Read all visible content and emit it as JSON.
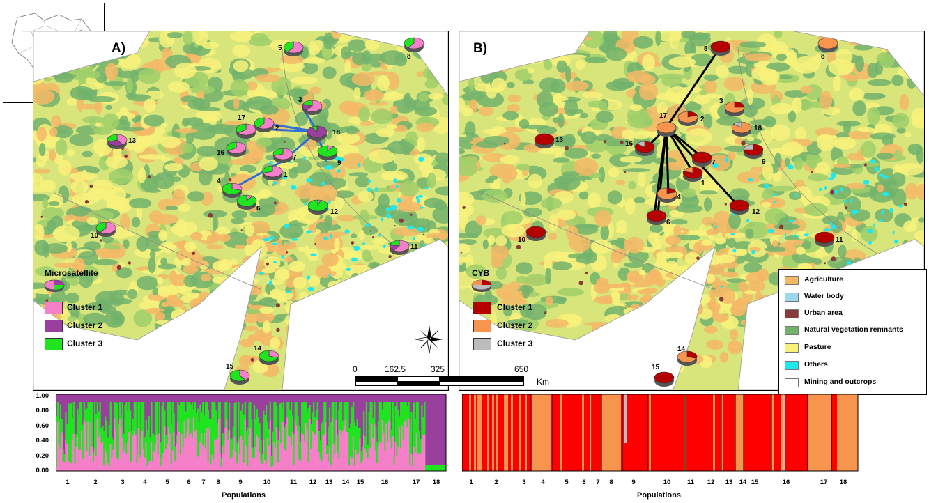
{
  "inset_map": {
    "label": ""
  },
  "panels": {
    "a": {
      "label": "A)",
      "legend_title": "Microsatellite"
    },
    "b": {
      "label": "B)",
      "legend_title": "CYB"
    }
  },
  "clusters_a": [
    {
      "label": "Cluster 1",
      "color": "#f57fc8"
    },
    {
      "label": "Cluster 2",
      "color": "#9a3f9e"
    },
    {
      "label": "Cluster 3",
      "color": "#1fe41f"
    }
  ],
  "clusters_b": [
    {
      "label": "Cluster 1",
      "color": "#b60000"
    },
    {
      "label": "Cluster 2",
      "color": "#f7944d"
    },
    {
      "label": "Cluster 3",
      "color": "#bcbcbc"
    }
  ],
  "land_use_legend": [
    {
      "label": "Agriculture",
      "color": "#f4b867"
    },
    {
      "label": "Water body",
      "color": "#9dd8ee"
    },
    {
      "label": "Urban area",
      "color": "#8b3a3a"
    },
    {
      "label": "Natural vegetation remnants",
      "color": "#72b36c"
    },
    {
      "label": "Pasture",
      "color": "#f8f27b"
    },
    {
      "label": "Others",
      "color": "#1ee8f0"
    },
    {
      "label": "Mining and outcrops",
      "color": "#ffffff"
    }
  ],
  "scale_bar": {
    "labels": [
      "0",
      "162.5",
      "325",
      "650"
    ],
    "unit": "Km"
  },
  "populations_a": [
    "5",
    "8",
    "3",
    "17",
    "2",
    "18",
    "13",
    "16",
    "7",
    "9",
    "1",
    "4",
    "6",
    "12",
    "10",
    "11",
    "14",
    "15"
  ],
  "populations_b": [
    "5",
    "8",
    "3",
    "17",
    "2",
    "18",
    "13",
    "16",
    "7",
    "9",
    "1",
    "4",
    "6",
    "12",
    "10",
    "11",
    "14",
    "15"
  ],
  "bar_plot_a": {
    "y_ticks": [
      "1.00",
      "0.80",
      "0.60",
      "0.40",
      "0.20",
      "0.00"
    ],
    "x_ticks": [
      "1",
      "2",
      "3",
      "4",
      "5",
      "6",
      "7",
      "8",
      "9",
      "10",
      "11",
      "12",
      "13",
      "14",
      "15",
      "16",
      "17",
      "18"
    ],
    "x_label": "Populations"
  },
  "bar_plot_b": {
    "x_ticks": [
      "1",
      "2",
      "3",
      "4",
      "5",
      "6",
      "7",
      "8",
      "9",
      "10",
      "11",
      "12",
      "13",
      "14",
      "15",
      "16",
      "17",
      "18"
    ],
    "x_label": "Populations"
  }
}
